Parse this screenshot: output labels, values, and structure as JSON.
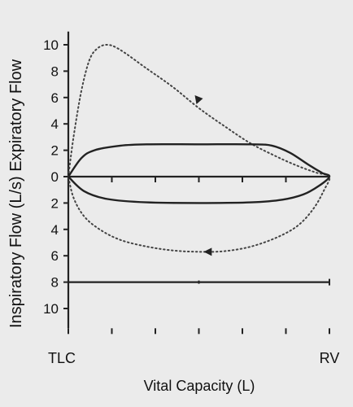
{
  "chart_data": {
    "type": "line",
    "title": "",
    "xlabel": "Vital Capacity (L)",
    "ylabel_top": "Expiratory Flow",
    "ylabel_bottom": "Inspiratory Flow (L/s)",
    "x_tick_labels": [
      "TLC",
      "RV"
    ],
    "y_tick_labels_expiratory": [
      "10",
      "8",
      "6",
      "4",
      "2",
      "0"
    ],
    "y_tick_labels_inspiratory": [
      "2",
      "4",
      "6",
      "8",
      "10"
    ],
    "ylim": [
      -11.5,
      11
    ],
    "xlim": [
      0,
      1
    ],
    "x_reference_value": 0,
    "y_reference_value": -8,
    "series": [
      {
        "style": "dotted",
        "color": "#444444",
        "points": [
          [
            0.0,
            0
          ],
          [
            0.02,
            3
          ],
          [
            0.05,
            6.5
          ],
          [
            0.08,
            8.8
          ],
          [
            0.11,
            9.7
          ],
          [
            0.15,
            10
          ],
          [
            0.2,
            9.6
          ],
          [
            0.3,
            8.2
          ],
          [
            0.4,
            6.8
          ],
          [
            0.5,
            5.2
          ],
          [
            0.6,
            3.8
          ],
          [
            0.7,
            2.5
          ],
          [
            0.8,
            1.5
          ],
          [
            0.88,
            0.8
          ],
          [
            0.95,
            0.3
          ],
          [
            1.0,
            0
          ],
          [
            0.98,
            -1
          ],
          [
            0.94,
            -2.4
          ],
          [
            0.88,
            -3.7
          ],
          [
            0.8,
            -4.6
          ],
          [
            0.7,
            -5.3
          ],
          [
            0.6,
            -5.65
          ],
          [
            0.5,
            -5.7
          ],
          [
            0.4,
            -5.6
          ],
          [
            0.3,
            -5.3
          ],
          [
            0.2,
            -4.8
          ],
          [
            0.12,
            -4.0
          ],
          [
            0.06,
            -3.0
          ],
          [
            0.02,
            -1.6
          ],
          [
            0.0,
            0
          ]
        ],
        "arrows": [
          {
            "x": 0.5,
            "y": 5.8,
            "direction": "up-left"
          },
          {
            "x": 0.54,
            "y": -5.7,
            "direction": "left"
          }
        ]
      },
      {
        "style": "solid",
        "color": "#222222",
        "points": [
          [
            0.0,
            0
          ],
          [
            0.05,
            1.4
          ],
          [
            0.1,
            2.0
          ],
          [
            0.2,
            2.35
          ],
          [
            0.3,
            2.45
          ],
          [
            0.5,
            2.45
          ],
          [
            0.7,
            2.45
          ],
          [
            0.78,
            2.35
          ],
          [
            0.85,
            1.8
          ],
          [
            0.92,
            0.9
          ],
          [
            0.97,
            0.3
          ],
          [
            1.0,
            0
          ],
          [
            0.96,
            -0.7
          ],
          [
            0.9,
            -1.35
          ],
          [
            0.82,
            -1.75
          ],
          [
            0.7,
            -1.95
          ],
          [
            0.5,
            -2.0
          ],
          [
            0.3,
            -1.95
          ],
          [
            0.15,
            -1.7
          ],
          [
            0.06,
            -1.1
          ],
          [
            0.0,
            0
          ]
        ]
      }
    ]
  }
}
